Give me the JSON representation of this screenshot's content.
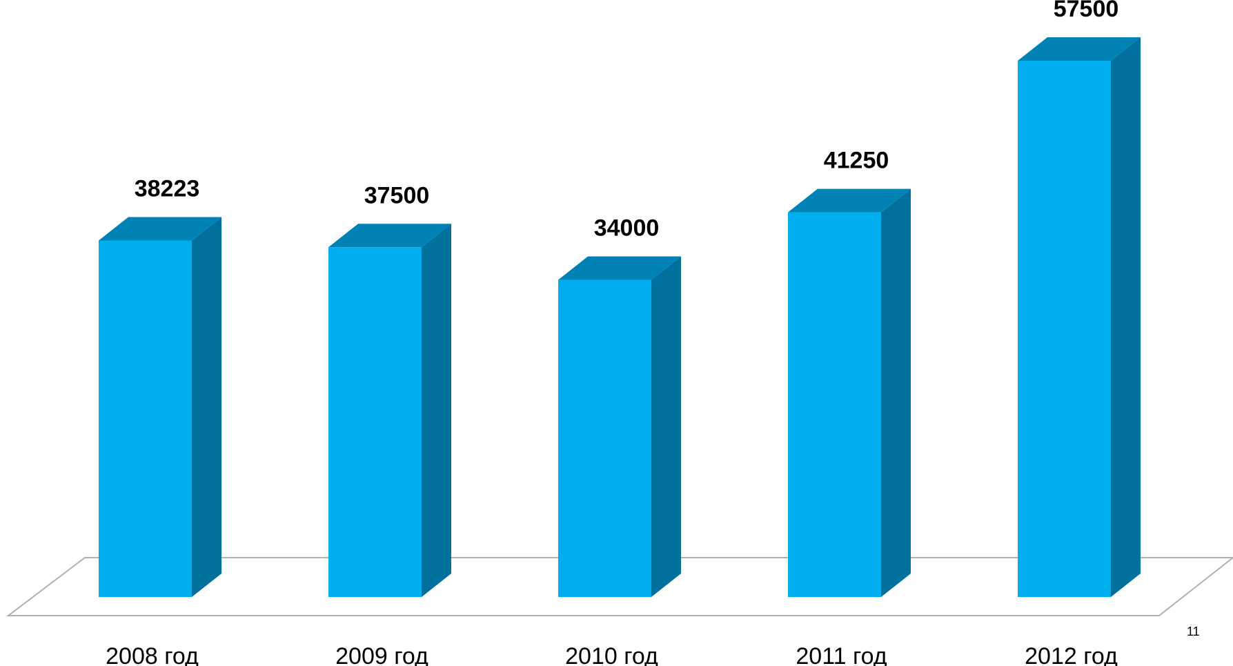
{
  "page_number": "11",
  "colors": {
    "bar_front": "#00AEEF",
    "bar_top": "#0083B4",
    "bar_side": "#00709C",
    "floor_stroke": "#b0b0b0"
  },
  "chart_data": {
    "type": "bar",
    "categories": [
      "2008 год",
      "2009 год",
      "2010 год",
      "2011 год",
      "2012 год"
    ],
    "values": [
      38223,
      37500,
      34000,
      41250,
      57500
    ],
    "data_labels": [
      "38223",
      "37500",
      "34000",
      "41250",
      "57500"
    ],
    "title": "",
    "xlabel": "",
    "ylabel": "",
    "ylim": [
      0,
      57500
    ],
    "grid": false,
    "legend": "none",
    "style": "3d-column"
  }
}
